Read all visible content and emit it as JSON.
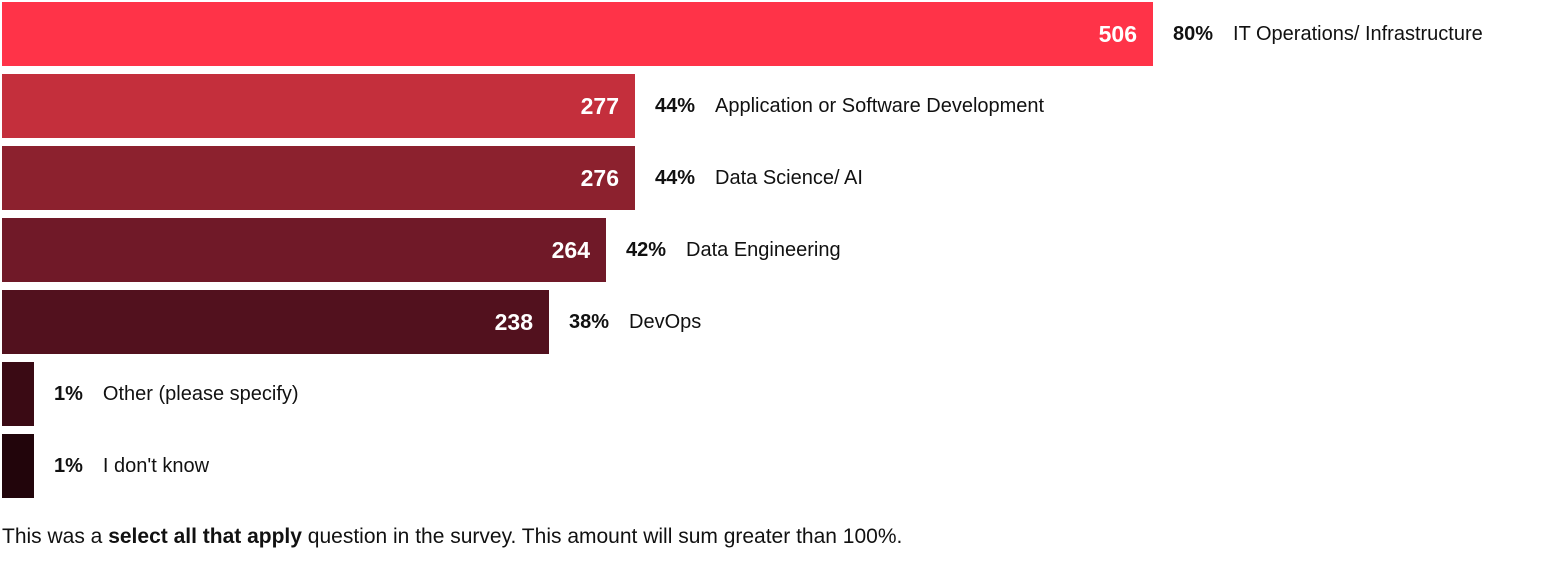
{
  "chart_data": {
    "type": "bar",
    "orientation": "horizontal",
    "categories": [
      "IT Operations/ Infrastructure",
      "Application or Software Development",
      "Data Science/ AI",
      "Data Engineering",
      "DevOps",
      "Other (please specify)",
      "I don't know"
    ],
    "values": [
      506,
      277,
      276,
      264,
      238,
      null,
      null
    ],
    "value_labels": [
      "506",
      "277",
      "276",
      "264",
      "238",
      "",
      ""
    ],
    "percentages": [
      80,
      44,
      44,
      42,
      38,
      1,
      1
    ],
    "percentage_labels": [
      "80%",
      "44%",
      "44%",
      "42%",
      "38%",
      "1%",
      "1%"
    ],
    "colors": [
      "#ff3348",
      "#c42f3c",
      "#8c212e",
      "#701928",
      "#52111e",
      "#3a0a14",
      "#22050b"
    ],
    "title": "",
    "xlabel": "",
    "ylabel": "",
    "xlim": [
      0,
      80
    ],
    "grid": false,
    "legend": "none"
  },
  "footnote": {
    "before": "This was a ",
    "bold": "select all that apply",
    "after": " question in the survey. This amount will sum greater than 100%."
  }
}
